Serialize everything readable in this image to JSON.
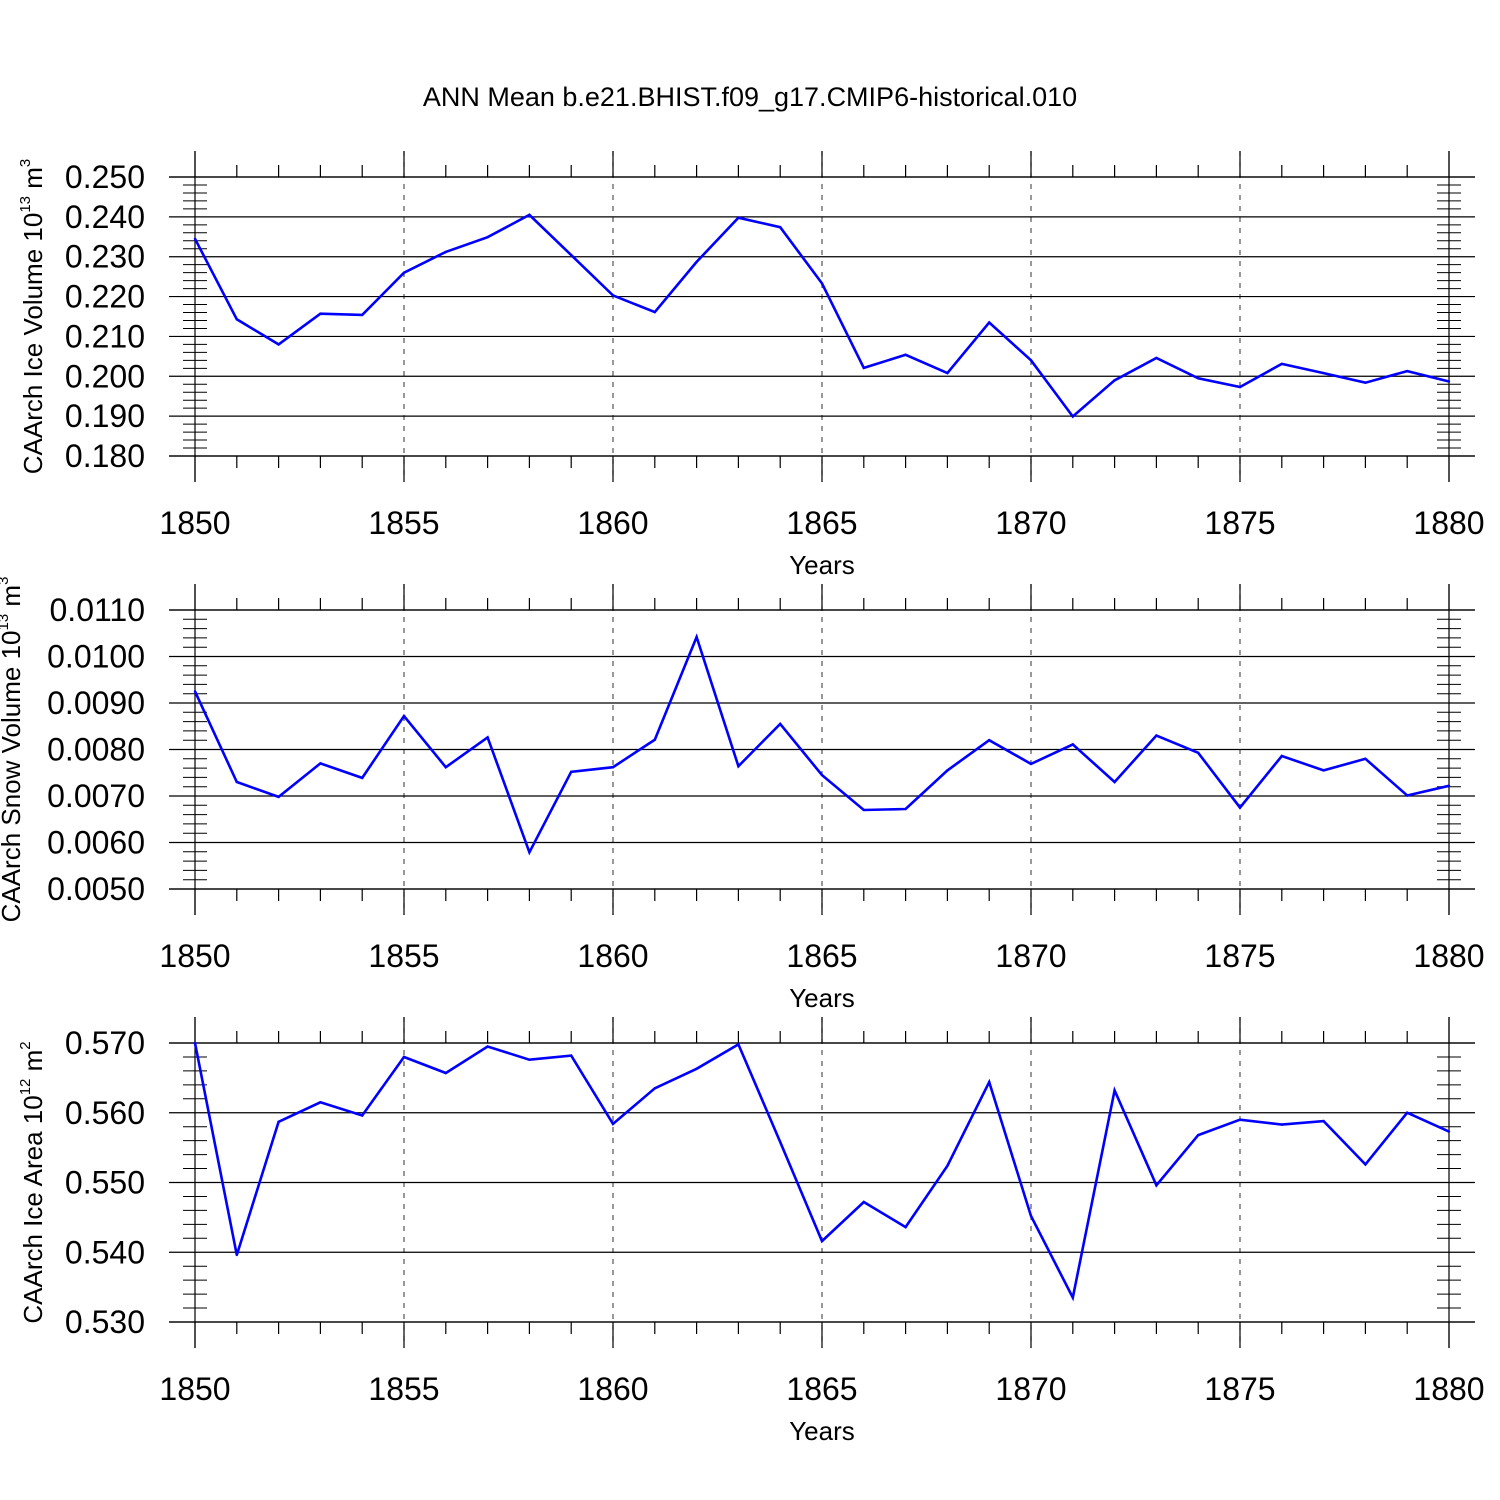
{
  "title": "ANN Mean b.e21.BHIST.f09_g17.CMIP6-historical.010",
  "chart_data": [
    {
      "type": "line",
      "title": "ANN Mean b.e21.BHIST.f09_g17.CMIP6-historical.010",
      "xlabel": "Years",
      "ylabel_main": "CAArch Ice Volume 10",
      "ylabel_exp": "13",
      "ylabel_unit": " m",
      "ylabel_unit_exp": "3",
      "xlim": [
        1850,
        1880
      ],
      "ylim": [
        0.18,
        0.25
      ],
      "xticks": [
        1850,
        1855,
        1860,
        1865,
        1870,
        1875,
        1880
      ],
      "yticks": [
        "0.180",
        "0.190",
        "0.200",
        "0.210",
        "0.220",
        "0.230",
        "0.240",
        "0.250"
      ],
      "yticks_values": [
        0.18,
        0.19,
        0.2,
        0.21,
        0.22,
        0.23,
        0.24,
        0.25
      ],
      "grid": "vertical dashed at major x ticks",
      "color": "#0000ff",
      "x": [
        1850,
        1851,
        1852,
        1853,
        1854,
        1855,
        1856,
        1857,
        1858,
        1859,
        1860,
        1861,
        1862,
        1863,
        1864,
        1865,
        1866,
        1867,
        1868,
        1869,
        1870,
        1871,
        1872,
        1873,
        1874,
        1875,
        1876,
        1877,
        1878,
        1879,
        1880
      ],
      "values": [
        0.2345,
        0.2143,
        0.208,
        0.2157,
        0.2154,
        0.226,
        0.2312,
        0.2349,
        0.2405,
        0.2304,
        0.2203,
        0.2161,
        0.2287,
        0.2398,
        0.2374,
        0.2233,
        0.2021,
        0.2054,
        0.2008,
        0.2135,
        0.204,
        0.1899,
        0.199,
        0.2046,
        0.1995,
        0.1973,
        0.2031,
        0.2008,
        0.1984,
        0.2013,
        0.1987
      ]
    },
    {
      "type": "line",
      "xlabel": "Years",
      "ylabel_main": "CAArch Snow Volume 10",
      "ylabel_exp": "13",
      "ylabel_unit": " m",
      "ylabel_unit_exp": "3",
      "xlim": [
        1850,
        1880
      ],
      "ylim": [
        0.005,
        0.011
      ],
      "xticks": [
        1850,
        1855,
        1860,
        1865,
        1870,
        1875,
        1880
      ],
      "yticks": [
        "0.0050",
        "0.0060",
        "0.0070",
        "0.0080",
        "0.0090",
        "0.0100",
        "0.0110"
      ],
      "yticks_values": [
        0.005,
        0.006,
        0.007,
        0.008,
        0.009,
        0.01,
        0.011
      ],
      "grid": "vertical dashed at major x ticks",
      "color": "#0000ff",
      "x": [
        1850,
        1851,
        1852,
        1853,
        1854,
        1855,
        1856,
        1857,
        1858,
        1859,
        1860,
        1861,
        1862,
        1863,
        1864,
        1865,
        1866,
        1867,
        1868,
        1869,
        1870,
        1871,
        1872,
        1873,
        1874,
        1875,
        1876,
        1877,
        1878,
        1879,
        1880
      ],
      "values": [
        0.00925,
        0.0073,
        0.00698,
        0.0077,
        0.00739,
        0.00872,
        0.00762,
        0.00826,
        0.00579,
        0.00752,
        0.00762,
        0.00821,
        0.01042,
        0.00764,
        0.00855,
        0.00745,
        0.0067,
        0.00672,
        0.00755,
        0.0082,
        0.00769,
        0.00811,
        0.0073,
        0.0083,
        0.00793,
        0.00675,
        0.00786,
        0.00755,
        0.0078,
        0.00701,
        0.00722
      ]
    },
    {
      "type": "line",
      "xlabel": "Years",
      "ylabel_main": "CAArch Ice Area 10",
      "ylabel_exp": "12",
      "ylabel_unit": " m",
      "ylabel_unit_exp": "2",
      "xlim": [
        1850,
        1880
      ],
      "ylim": [
        0.53,
        0.57
      ],
      "xticks": [
        1850,
        1855,
        1860,
        1865,
        1870,
        1875,
        1880
      ],
      "yticks": [
        "0.530",
        "0.540",
        "0.550",
        "0.560",
        "0.570"
      ],
      "yticks_values": [
        0.53,
        0.54,
        0.55,
        0.56,
        0.57
      ],
      "grid": "vertical dashed at major x ticks",
      "color": "#0000ff",
      "x": [
        1850,
        1851,
        1852,
        1853,
        1854,
        1855,
        1856,
        1857,
        1858,
        1859,
        1860,
        1861,
        1862,
        1863,
        1864,
        1865,
        1866,
        1867,
        1868,
        1869,
        1870,
        1871,
        1872,
        1873,
        1874,
        1875,
        1876,
        1877,
        1878,
        1879,
        1880
      ],
      "values": [
        0.57,
        0.5396,
        0.5587,
        0.5615,
        0.5596,
        0.568,
        0.5657,
        0.5695,
        0.5676,
        0.5682,
        0.5584,
        0.5635,
        0.5663,
        0.5698,
        0.5558,
        0.5416,
        0.5472,
        0.5436,
        0.5524,
        0.5644,
        0.5452,
        0.5335,
        0.5632,
        0.5496,
        0.5568,
        0.559,
        0.5583,
        0.5588,
        0.5526,
        0.56,
        0.5573
      ]
    }
  ]
}
